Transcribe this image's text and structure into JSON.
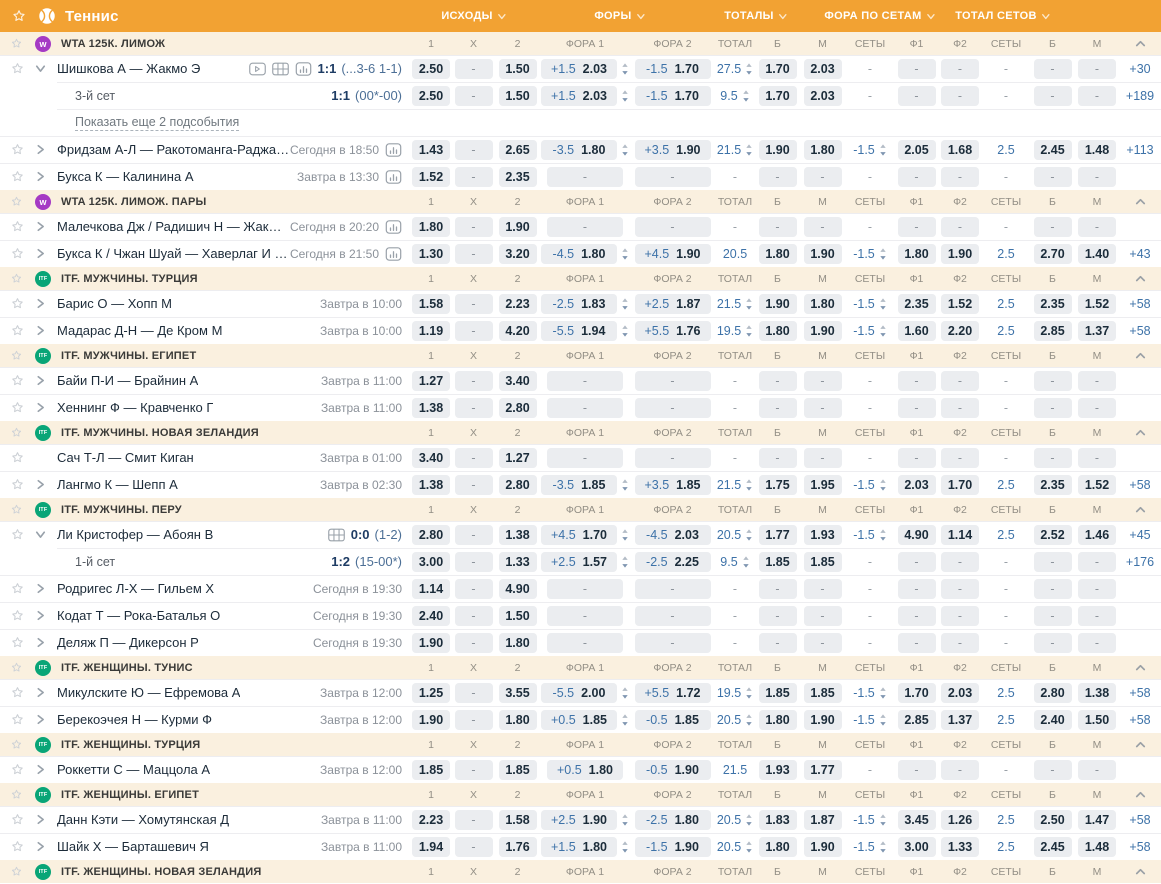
{
  "header": {
    "title": "Теннис",
    "groups": [
      {
        "label": "ИСХОДЫ"
      },
      {
        "label": "ФОРЫ"
      },
      {
        "label": "ТОТАЛЫ"
      },
      {
        "label": "ФОРА ПО СЕТАМ"
      },
      {
        "label": "ТОТАЛ СЕТОВ"
      }
    ]
  },
  "columns": [
    "1",
    "X",
    "2",
    "ФОРА 1",
    "ФОРА 2",
    "ТОТАЛ",
    "Б",
    "М",
    "СЕТЫ",
    "Ф1",
    "Ф2",
    "СЕТЫ",
    "Б",
    "М"
  ],
  "colors": {
    "accent": "#F2A233",
    "league_bg": "#FAF0DF",
    "chip_bg": "#EBEDF0",
    "blue": "#3D72A8",
    "navy": "#1E3C64",
    "wta_badge": "#A53AC4",
    "itf_badge": "#09A577"
  },
  "rows": [
    {
      "type": "league",
      "badge": "wta",
      "name": "WTA 125К. ЛИМОЖ"
    },
    {
      "type": "match",
      "chevron": "down",
      "name": "Шишкова А — Жакмо Э",
      "icons": [
        "video",
        "grid",
        "stats"
      ],
      "score": "1:1",
      "score_detail": "(...3-6 1-1)",
      "odds": {
        "p1": "2.50",
        "x": "-",
        "p2": "1.50",
        "f1": {
          "h": "+1.5",
          "v": "2.03",
          "spin": true
        },
        "f2": {
          "h": "-1.5",
          "v": "1.70"
        },
        "total": {
          "v": "27.5",
          "spin": true
        },
        "b": "1.70",
        "m": "2.03",
        "sets1": "-",
        "sf1": "-",
        "sf2": "-",
        "sets2": "-",
        "sb": "-",
        "sm": "-",
        "more": "+30"
      }
    },
    {
      "type": "sub",
      "name": "3-й сет",
      "score": "1:1",
      "score_detail": "(00*-00)",
      "odds": {
        "p1": "2.50",
        "x": "-",
        "p2": "1.50",
        "f1": {
          "h": "+1.5",
          "v": "2.03",
          "spin": true
        },
        "f2": {
          "h": "-1.5",
          "v": "1.70"
        },
        "total": {
          "v": "9.5",
          "spin": true
        },
        "b": "1.70",
        "m": "2.03",
        "sets1": "-",
        "sf1": "-",
        "sf2": "-",
        "sets2": "-",
        "sb": "-",
        "sm": "-",
        "more": "+189"
      }
    },
    {
      "type": "show",
      "name": "Показать еще 2 подсобытия"
    },
    {
      "type": "match",
      "chevron": "right",
      "name": "Фридзам А-Л — Ракотоманга-Раджаона Т-С",
      "time": "Сегодня в 18:50",
      "icons": [
        "stats"
      ],
      "odds": {
        "p1": "1.43",
        "x": "-",
        "p2": "2.65",
        "f1": {
          "h": "-3.5",
          "v": "1.80",
          "spin": true
        },
        "f2": {
          "h": "+3.5",
          "v": "1.90"
        },
        "total": {
          "v": "21.5",
          "spin": true
        },
        "b": "1.90",
        "m": "1.80",
        "sets1": {
          "v": "-1.5",
          "spin": true
        },
        "sf1": "2.05",
        "sf2": "1.68",
        "sets2": "2.5",
        "sb": "2.45",
        "sm": "1.48",
        "more": "+113"
      }
    },
    {
      "type": "match",
      "chevron": "right",
      "name": "Букса К — Калинина А",
      "time": "Завтра в 13:30",
      "icons": [
        "stats"
      ],
      "odds": {
        "p1": "1.52",
        "x": "-",
        "p2": "2.35",
        "f1": "-",
        "f2": "-",
        "total": "-",
        "b": "-",
        "m": "-",
        "sets1": "-",
        "sf1": "-",
        "sf2": "-",
        "sets2": "-",
        "sb": "-",
        "sm": "-",
        "more": null
      }
    },
    {
      "type": "league",
      "badge": "wta",
      "name": "WTA 125К. ЛИМОЖ. ПАРЫ"
    },
    {
      "type": "match",
      "chevron": "right",
      "name": "Малечкова Дж / Радишич Н — Жакмо Э / ...",
      "time": "Сегодня в 20:20",
      "icons": [
        "stats"
      ],
      "odds": {
        "p1": "1.80",
        "x": "-",
        "p2": "1.90",
        "f1": "-",
        "f2": "-",
        "total": "-",
        "b": "-",
        "m": "-",
        "sets1": "-",
        "sf1": "-",
        "sf2": "-",
        "sets2": "-",
        "sb": "-",
        "sm": "-",
        "more": null
      }
    },
    {
      "type": "match",
      "chevron": "right",
      "name": "Букса К / Чжан Шуай — Хаверлаг И / Люмс...",
      "time": "Сегодня в 21:50",
      "icons": [
        "stats"
      ],
      "odds": {
        "p1": "1.30",
        "x": "-",
        "p2": "3.20",
        "f1": {
          "h": "-4.5",
          "v": "1.80",
          "spin": true
        },
        "f2": {
          "h": "+4.5",
          "v": "1.90"
        },
        "total": {
          "v": "20.5"
        },
        "b": "1.80",
        "m": "1.90",
        "sets1": {
          "v": "-1.5",
          "spin": true
        },
        "sf1": "1.80",
        "sf2": "1.90",
        "sets2": "2.5",
        "sb": "2.70",
        "sm": "1.40",
        "more": "+43"
      }
    },
    {
      "type": "league",
      "badge": "itf",
      "name": "ITF. МУЖЧИНЫ. ТУРЦИЯ"
    },
    {
      "type": "match",
      "chevron": "right",
      "name": "Барис О — Хопп М",
      "time": "Завтра в 10:00",
      "icons": [],
      "odds": {
        "p1": "1.58",
        "x": "-",
        "p2": "2.23",
        "f1": {
          "h": "-2.5",
          "v": "1.83",
          "spin": true
        },
        "f2": {
          "h": "+2.5",
          "v": "1.87"
        },
        "total": {
          "v": "21.5",
          "spin": true
        },
        "b": "1.90",
        "m": "1.80",
        "sets1": {
          "v": "-1.5",
          "spin": true
        },
        "sf1": "2.35",
        "sf2": "1.52",
        "sets2": "2.5",
        "sb": "2.35",
        "sm": "1.52",
        "more": "+58"
      }
    },
    {
      "type": "match",
      "chevron": "right",
      "name": "Мадарас Д-Н — Де Кром М",
      "time": "Завтра в 10:00",
      "icons": [],
      "odds": {
        "p1": "1.19",
        "x": "-",
        "p2": "4.20",
        "f1": {
          "h": "-5.5",
          "v": "1.94",
          "spin": true
        },
        "f2": {
          "h": "+5.5",
          "v": "1.76"
        },
        "total": {
          "v": "19.5",
          "spin": true
        },
        "b": "1.80",
        "m": "1.90",
        "sets1": {
          "v": "-1.5",
          "spin": true
        },
        "sf1": "1.60",
        "sf2": "2.20",
        "sets2": "2.5",
        "sb": "2.85",
        "sm": "1.37",
        "more": "+58"
      }
    },
    {
      "type": "league",
      "badge": "itf",
      "name": "ITF. МУЖЧИНЫ. ЕГИПЕТ"
    },
    {
      "type": "match",
      "chevron": "right",
      "name": "Байи П-И — Брайнин А",
      "time": "Завтра в 11:00",
      "icons": [],
      "odds": {
        "p1": "1.27",
        "x": "-",
        "p2": "3.40",
        "f1": "-",
        "f2": "-",
        "total": "-",
        "b": "-",
        "m": "-",
        "sets1": "-",
        "sf1": "-",
        "sf2": "-",
        "sets2": "-",
        "sb": "-",
        "sm": "-",
        "more": null
      }
    },
    {
      "type": "match",
      "chevron": "right",
      "name": "Хеннинг Ф — Кравченко Г",
      "time": "Завтра в 11:00",
      "icons": [],
      "odds": {
        "p1": "1.38",
        "x": "-",
        "p2": "2.80",
        "f1": "-",
        "f2": "-",
        "total": "-",
        "b": "-",
        "m": "-",
        "sets1": "-",
        "sf1": "-",
        "sf2": "-",
        "sets2": "-",
        "sb": "-",
        "sm": "-",
        "more": null
      }
    },
    {
      "type": "league",
      "badge": "itf",
      "name": "ITF. МУЖЧИНЫ. НОВАЯ ЗЕЛАНДИЯ"
    },
    {
      "type": "match",
      "chevron": null,
      "name": "Сач Т-Л — Смит Киган",
      "time": "Завтра в 01:00",
      "icons": [],
      "odds": {
        "p1": "3.40",
        "x": "-",
        "p2": "1.27",
        "f1": "-",
        "f2": "-",
        "total": "-",
        "b": "-",
        "m": "-",
        "sets1": "-",
        "sf1": "-",
        "sf2": "-",
        "sets2": "-",
        "sb": "-",
        "sm": "-",
        "more": null
      }
    },
    {
      "type": "match",
      "chevron": "right",
      "name": "Лангмо К — Шепп А",
      "time": "Завтра в 02:30",
      "icons": [],
      "odds": {
        "p1": "1.38",
        "x": "-",
        "p2": "2.80",
        "f1": {
          "h": "-3.5",
          "v": "1.85",
          "spin": true
        },
        "f2": {
          "h": "+3.5",
          "v": "1.85"
        },
        "total": {
          "v": "21.5",
          "spin": true
        },
        "b": "1.75",
        "m": "1.95",
        "sets1": {
          "v": "-1.5",
          "spin": true
        },
        "sf1": "2.03",
        "sf2": "1.70",
        "sets2": "2.5",
        "sb": "2.35",
        "sm": "1.52",
        "more": "+58"
      }
    },
    {
      "type": "league",
      "badge": "itf",
      "name": "ITF. МУЖЧИНЫ. ПЕРУ"
    },
    {
      "type": "match",
      "chevron": "down",
      "name": "Ли Кристофер — Абоян В",
      "icons": [
        "grid"
      ],
      "score": "0:0",
      "score_detail": "(1-2)",
      "odds": {
        "p1": "2.80",
        "x": "-",
        "p2": "1.38",
        "f1": {
          "h": "+4.5",
          "v": "1.70",
          "spin": true
        },
        "f2": {
          "h": "-4.5",
          "v": "2.03"
        },
        "total": {
          "v": "20.5",
          "spin": true
        },
        "b": "1.77",
        "m": "1.93",
        "sets1": {
          "v": "-1.5",
          "spin": true
        },
        "sf1": "4.90",
        "sf2": "1.14",
        "sets2": "2.5",
        "sb": "2.52",
        "sm": "1.46",
        "more": "+45"
      }
    },
    {
      "type": "sub",
      "name": "1-й сет",
      "score": "1:2",
      "score_detail": "(15-00*)",
      "odds": {
        "p1": "3.00",
        "x": "-",
        "p2": "1.33",
        "f1": {
          "h": "+2.5",
          "v": "1.57",
          "spin": true
        },
        "f2": {
          "h": "-2.5",
          "v": "2.25"
        },
        "total": {
          "v": "9.5",
          "spin": true
        },
        "b": "1.85",
        "m": "1.85",
        "sets1": "-",
        "sf1": "-",
        "sf2": "-",
        "sets2": "-",
        "sb": "-",
        "sm": "-",
        "more": "+176"
      }
    },
    {
      "type": "match",
      "chevron": "right",
      "name": "Родригес Л-Х — Гильем Х",
      "time": "Сегодня в 19:30",
      "icons": [],
      "odds": {
        "p1": "1.14",
        "x": "-",
        "p2": "4.90",
        "f1": "-",
        "f2": "-",
        "total": "-",
        "b": "-",
        "m": "-",
        "sets1": "-",
        "sf1": "-",
        "sf2": "-",
        "sets2": "-",
        "sb": "-",
        "sm": "-",
        "more": null
      }
    },
    {
      "type": "match",
      "chevron": "right",
      "name": "Кодат Т — Рока-Баталья О",
      "time": "Сегодня в 19:30",
      "icons": [],
      "odds": {
        "p1": "2.40",
        "x": "-",
        "p2": "1.50",
        "f1": "-",
        "f2": "-",
        "total": "-",
        "b": "-",
        "m": "-",
        "sets1": "-",
        "sf1": "-",
        "sf2": "-",
        "sets2": "-",
        "sb": "-",
        "sm": "-",
        "more": null
      }
    },
    {
      "type": "match",
      "chevron": "right",
      "name": "Деляж П — Дикерсон Р",
      "time": "Сегодня в 19:30",
      "icons": [],
      "odds": {
        "p1": "1.90",
        "x": "-",
        "p2": "1.80",
        "f1": "-",
        "f2": "-",
        "total": "-",
        "b": "-",
        "m": "-",
        "sets1": "-",
        "sf1": "-",
        "sf2": "-",
        "sets2": "-",
        "sb": "-",
        "sm": "-",
        "more": null
      }
    },
    {
      "type": "league",
      "badge": "itf",
      "name": "ITF. ЖЕНЩИНЫ. ТУНИС"
    },
    {
      "type": "match",
      "chevron": "right",
      "name": "Микулските Ю — Ефремова А",
      "time": "Завтра в 12:00",
      "icons": [],
      "odds": {
        "p1": "1.25",
        "x": "-",
        "p2": "3.55",
        "f1": {
          "h": "-5.5",
          "v": "2.00",
          "spin": true
        },
        "f2": {
          "h": "+5.5",
          "v": "1.72"
        },
        "total": {
          "v": "19.5",
          "spin": true
        },
        "b": "1.85",
        "m": "1.85",
        "sets1": {
          "v": "-1.5",
          "spin": true
        },
        "sf1": "1.70",
        "sf2": "2.03",
        "sets2": "2.5",
        "sb": "2.80",
        "sm": "1.38",
        "more": "+58"
      }
    },
    {
      "type": "match",
      "chevron": "right",
      "name": "Берекоэчея Н — Курми Ф",
      "time": "Завтра в 12:00",
      "icons": [],
      "odds": {
        "p1": "1.90",
        "x": "-",
        "p2": "1.80",
        "f1": {
          "h": "+0.5",
          "v": "1.85",
          "spin": true
        },
        "f2": {
          "h": "-0.5",
          "v": "1.85"
        },
        "total": {
          "v": "20.5",
          "spin": true
        },
        "b": "1.80",
        "m": "1.90",
        "sets1": {
          "v": "-1.5",
          "spin": true
        },
        "sf1": "2.85",
        "sf2": "1.37",
        "sets2": "2.5",
        "sb": "2.40",
        "sm": "1.50",
        "more": "+58"
      }
    },
    {
      "type": "league",
      "badge": "itf",
      "name": "ITF. ЖЕНЩИНЫ. ТУРЦИЯ"
    },
    {
      "type": "match",
      "chevron": "right",
      "name": "Роккетти С — Маццола А",
      "time": "Завтра в 12:00",
      "icons": [],
      "odds": {
        "p1": "1.85",
        "x": "-",
        "p2": "1.85",
        "f1": {
          "h": "+0.5",
          "v": "1.80"
        },
        "f2": {
          "h": "-0.5",
          "v": "1.90"
        },
        "total": {
          "v": "21.5"
        },
        "b": "1.93",
        "m": "1.77",
        "sets1": "-",
        "sf1": "-",
        "sf2": "-",
        "sets2": "-",
        "sb": "-",
        "sm": "-",
        "more": null
      }
    },
    {
      "type": "league",
      "badge": "itf",
      "name": "ITF. ЖЕНЩИНЫ. ЕГИПЕТ"
    },
    {
      "type": "match",
      "chevron": "right",
      "name": "Данн Кэти — Хомутянская Д",
      "time": "Завтра в 11:00",
      "icons": [],
      "odds": {
        "p1": "2.23",
        "x": "-",
        "p2": "1.58",
        "f1": {
          "h": "+2.5",
          "v": "1.90",
          "spin": true
        },
        "f2": {
          "h": "-2.5",
          "v": "1.80"
        },
        "total": {
          "v": "20.5",
          "spin": true
        },
        "b": "1.83",
        "m": "1.87",
        "sets1": {
          "v": "-1.5",
          "spin": true
        },
        "sf1": "3.45",
        "sf2": "1.26",
        "sets2": "2.5",
        "sb": "2.50",
        "sm": "1.47",
        "more": "+58"
      }
    },
    {
      "type": "match",
      "chevron": "right",
      "name": "Шайк Х — Барташевич Я",
      "time": "Завтра в 11:00",
      "icons": [],
      "odds": {
        "p1": "1.94",
        "x": "-",
        "p2": "1.76",
        "f1": {
          "h": "+1.5",
          "v": "1.80",
          "spin": true
        },
        "f2": {
          "h": "-1.5",
          "v": "1.90"
        },
        "total": {
          "v": "20.5",
          "spin": true
        },
        "b": "1.80",
        "m": "1.90",
        "sets1": {
          "v": "-1.5",
          "spin": true
        },
        "sf1": "3.00",
        "sf2": "1.33",
        "sets2": "2.5",
        "sb": "2.45",
        "sm": "1.48",
        "more": "+58"
      }
    },
    {
      "type": "league",
      "badge": "itf",
      "name": "ITF. ЖЕНЩИНЫ. НОВАЯ ЗЕЛАНДИЯ"
    }
  ]
}
